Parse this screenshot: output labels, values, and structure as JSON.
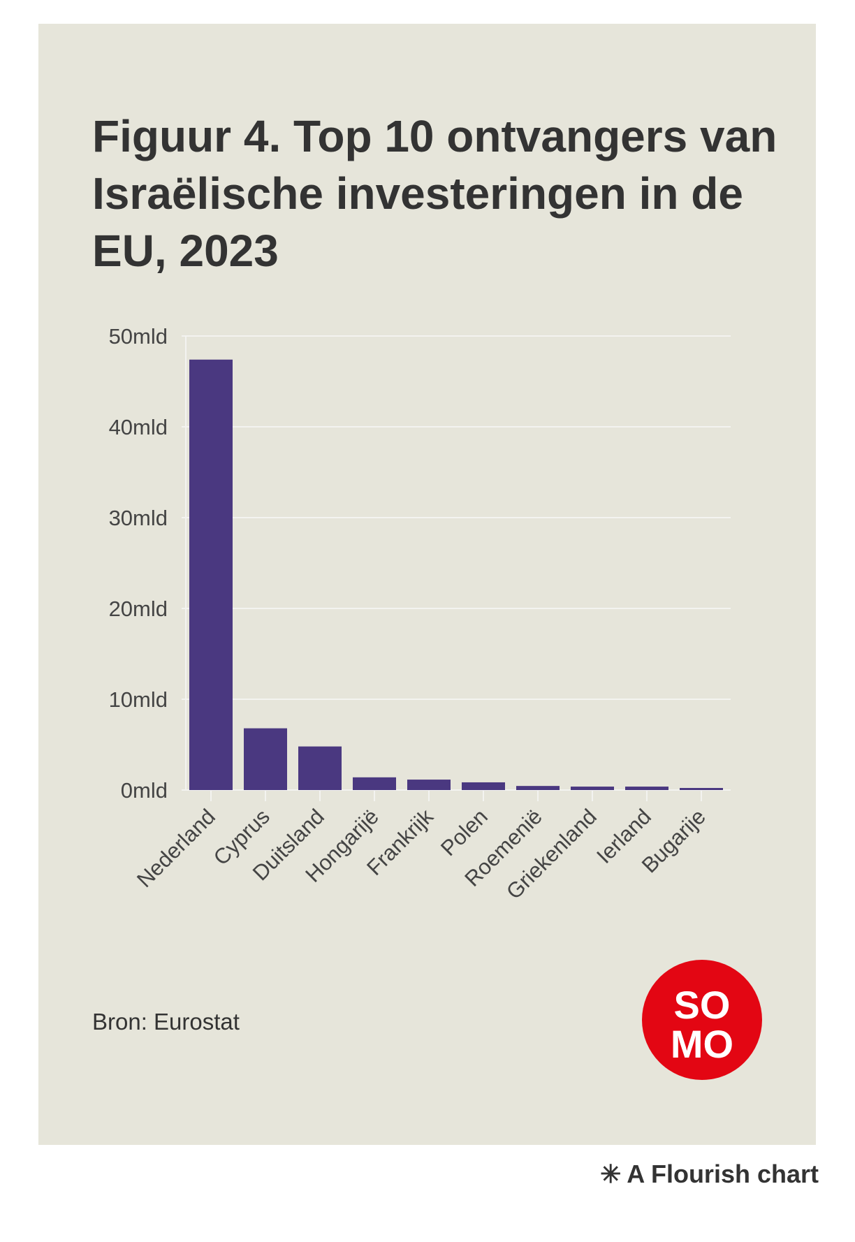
{
  "title": "Figuur 4. Top 10 ontvangers van Israëlische investeringen in de EU, 2023",
  "source": "Bron: Eurostat",
  "logo_text": "SOMO",
  "footer": "A Flourish chart",
  "colors": {
    "bar": "#4a3880",
    "background": "#e6e5da",
    "logo": "#e30613"
  },
  "chart_data": {
    "type": "bar",
    "title": "Figuur 4. Top 10 ontvangers van Israëlische investeringen in de EU, 2023",
    "xlabel": "",
    "ylabel": "",
    "categories": [
      "Nederland",
      "Cyprus",
      "Duitsland",
      "Hongarijë",
      "Frankrijk",
      "Polen",
      "Roemenië",
      "Griekenland",
      "Ierland",
      "Bugarije"
    ],
    "values": [
      47.4,
      6.8,
      4.8,
      1.4,
      1.15,
      0.85,
      0.45,
      0.38,
      0.38,
      0.23
    ],
    "unit": "mld",
    "ylim": [
      0,
      50
    ],
    "yticks": [
      0,
      10,
      20,
      30,
      40,
      50
    ],
    "ytick_labels": [
      "0mld",
      "10mld",
      "20mld",
      "30mld",
      "40mld",
      "50mld"
    ],
    "grid": true
  }
}
